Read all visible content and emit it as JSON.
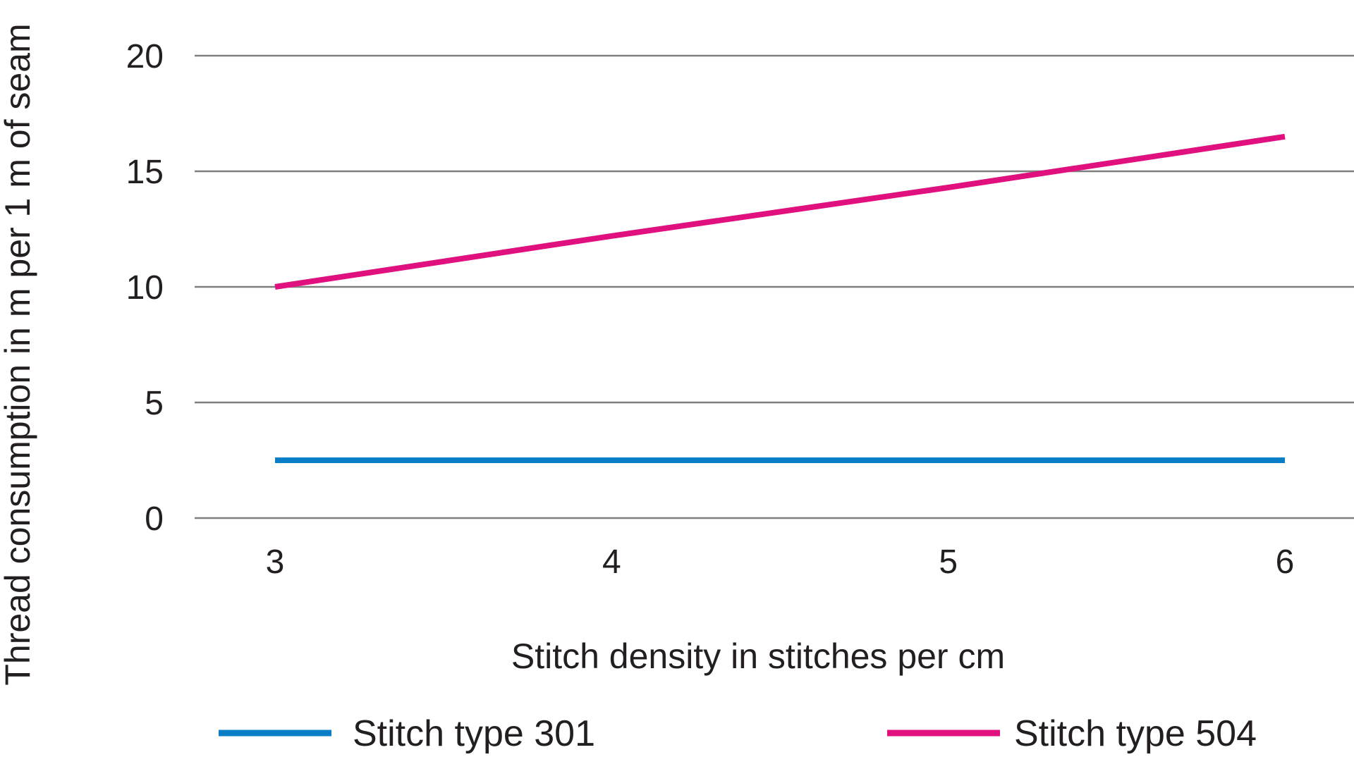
{
  "chart_data": {
    "type": "line",
    "title": "",
    "xlabel": "Stitch density in stitches per cm",
    "ylabel": "Thread consumption in m per 1 m of seam",
    "categories": [
      "3",
      "4",
      "5",
      "6"
    ],
    "x": [
      3,
      4,
      5,
      6
    ],
    "ylim": [
      0,
      20
    ],
    "yticks": [
      "0",
      "5",
      "10",
      "15",
      "20"
    ],
    "grid": true,
    "legend_position": "bottom",
    "series": [
      {
        "name": "Stitch type 301",
        "color": "#0a7fc7",
        "values": [
          2.5,
          2.5,
          2.5,
          2.5
        ]
      },
      {
        "name": "Stitch type 504",
        "color": "#e0117f",
        "values": [
          10,
          12.2,
          14.3,
          16.5
        ]
      }
    ]
  }
}
